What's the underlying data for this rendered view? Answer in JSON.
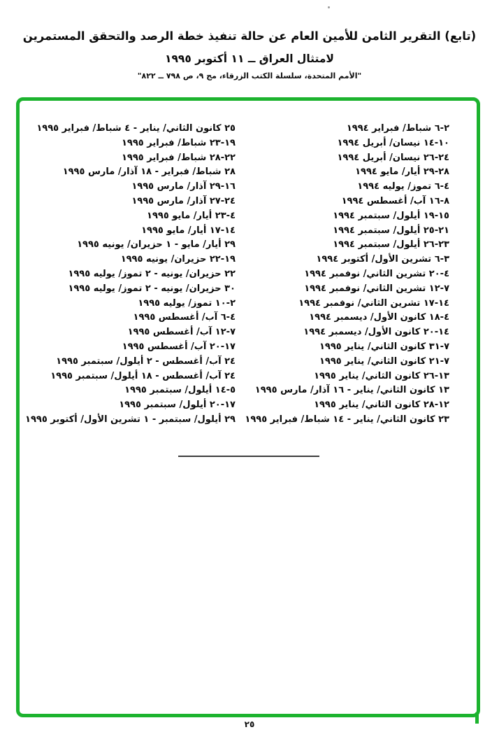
{
  "header": {
    "title_line1": "(تابع) التقرير الثامن للأمين العام عن حالة تنفيذ خطة الرصد والتحقق المستمرين",
    "title_line2": "لامتثال العراق ــ ١١ أكتوبر ١٩٩٥",
    "citation": "\"الأمم المتحدة، سلسلة الكتب الزرقاء، مج ٩، ص ٧٩٨ ــ ٨٢٢\""
  },
  "inspection_dates": {
    "column_right": [
      "٢-٦ شباط/ فبراير ١٩٩٤",
      "١٠-١٤ نيسان/ أبريل ١٩٩٤",
      "٢٤-٢٦ نيسان/ أبريل ١٩٩٤",
      "٢٨-٢٩ أيار/ مايو ١٩٩٤",
      "٤-٦ تموز/ يوليه ١٩٩٤",
      "٨-١٦ آب/ أغسطس ١٩٩٤",
      "١٥-١٩ أيلول/ سبتمبر ١٩٩٤",
      "٢١-٢٥ أيلول/ سبتمبر ١٩٩٤",
      "٢٣-٢٦ أيلول/ سبتمبر ١٩٩٤",
      "٣-٦ تشرين الأول/ أكتوبر ١٩٩٤",
      "٤-٢٠ تشرين الثاني/ نوفمبر ١٩٩٤",
      "٧-١٢ تشرين الثاني/ نوفمبر ١٩٩٤",
      "١٤-١٧ تشرين الثاني/ نوفمبر ١٩٩٤",
      "٤-١٨ كانون الأول/ ديسمبر ١٩٩٤",
      "١٤-٢٠ كانون الأول/ ديسمبر ١٩٩٤",
      "٧-٣١ كانون الثاني/ يناير ١٩٩٥",
      "٧-٢١ كانون الثاني/ يناير ١٩٩٥",
      "١٣-٢٦ كانون الثاني/ يناير ١٩٩٥",
      "١٣ كانون الثاني/ يناير - ١٦ آذار/ مارس ١٩٩٥",
      "١٢-٢٨ كانون الثاني/ يناير ١٩٩٥",
      "٢٣ كانون الثاني/ يناير - ١٤ شباط/ فبراير ١٩٩٥"
    ],
    "column_left": [
      "٢٥ كانون الثاني/ يناير - ٤ شباط/ فبراير ١٩٩٥",
      "١٩-٢٣ شباط/ فبراير ١٩٩٥",
      "٢٢-٢٨ شباط/ فبراير ١٩٩٥",
      "٢٨ شباط/ فبراير - ١٨ آذار/ مارس ١٩٩٥",
      "١٦-٢٩ آذار/ مارس ١٩٩٥",
      "٢٤-٢٧ آذار/ مارس ١٩٩٥",
      "٤-٢٣ أيار/ مايو ١٩٩٥",
      "١٤-١٧ أيار/ مايو ١٩٩٥",
      "٢٩ أيار/ مايو - ١ حزيران/ يونيه ١٩٩٥",
      "١٩-٢٢ حزيران/ يونيه ١٩٩٥",
      "٢٢ حزيران/ يونيه - ٢ تموز/ يوليه ١٩٩٥",
      "٣٠ حزيران/ يونيه - ٢ تموز/ يوليه ١٩٩٥",
      "٢-١٠ تموز/ يوليه ١٩٩٥",
      "٤-٦ آب/ أغسطس ١٩٩٥",
      "٧-١٢ آب/ أغسطس ١٩٩٥",
      "١٧-٢٠ آب/ أغسطس ١٩٩٥",
      "٢٤ آب/ أغسطس - ٢ أيلول/ سبتمبر ١٩٩٥",
      "٢٤ آب/ أغسطس - ١٨ أيلول/ سبتمبر ١٩٩٥",
      "٥-١٤ أيلول/ سبتمبر ١٩٩٥",
      "١٧-٢٠ أيلول/ سبتمبر ١٩٩٥",
      "٢٩ أيلول/ سبتمبر - ١ تشرين الأول/ أكتوبر ١٩٩٥"
    ]
  },
  "page_number": "٢٥",
  "colors": {
    "border_green": "#1cb32e",
    "text": "#0b0b0b",
    "background": "#ffffff"
  }
}
